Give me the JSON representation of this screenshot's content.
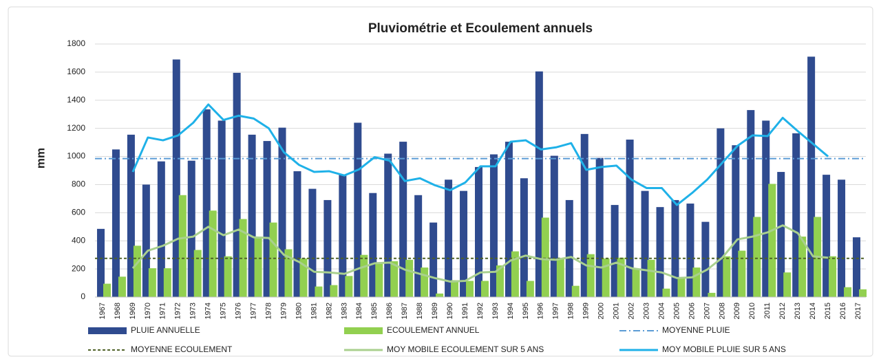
{
  "chart_data": {
    "type": "bar",
    "title": "Pluviométrie et Ecoulement annuels",
    "ylabel": "mm",
    "categories": [
      "1967",
      "1968",
      "1969",
      "1970",
      "1971",
      "1972",
      "1973",
      "1974",
      "1975",
      "1976",
      "1977",
      "1978",
      "1979",
      "1980",
      "1981",
      "1982",
      "1983",
      "1984",
      "1985",
      "1986",
      "1987",
      "1988",
      "1989",
      "1990",
      "1991",
      "1992",
      "1993",
      "1994",
      "1995",
      "1996",
      "1997",
      "1998",
      "1999",
      "2000",
      "2001",
      "2002",
      "2003",
      "2004",
      "2005",
      "2006",
      "2007",
      "2008",
      "2009",
      "2010",
      "2011",
      "2012",
      "2013",
      "2014",
      "2015",
      "2016",
      "2017"
    ],
    "ylim": [
      0,
      1800
    ],
    "yticks": [
      0,
      200,
      400,
      600,
      800,
      1000,
      1200,
      1400,
      1600,
      1800
    ],
    "grid": true,
    "series": [
      {
        "name": "PLUIE ANNUELLE",
        "type": "bar",
        "color": "#2f4b8f",
        "values": [
          485,
          1050,
          1155,
          800,
          965,
          1690,
          970,
          1335,
          1255,
          1595,
          1155,
          1110,
          1205,
          895,
          770,
          690,
          870,
          1240,
          740,
          1020,
          1105,
          725,
          530,
          835,
          755,
          925,
          1015,
          1105,
          845,
          1605,
          1005,
          690,
          1160,
          990,
          655,
          1120,
          755,
          640,
          690,
          665,
          535,
          1200,
          1080,
          1330,
          1255,
          890,
          1165,
          1710,
          870,
          835,
          425
        ]
      },
      {
        "name": "ECOULEMENT ANNUEL",
        "type": "bar",
        "color": "#92d050",
        "values": [
          95,
          145,
          365,
          205,
          205,
          725,
          335,
          615,
          290,
          555,
          430,
          530,
          340,
          275,
          75,
          85,
          150,
          300,
          240,
          255,
          265,
          210,
          25,
          120,
          115,
          115,
          225,
          325,
          115,
          565,
          275,
          80,
          305,
          275,
          280,
          200,
          265,
          60,
          135,
          210,
          30,
          290,
          330,
          570,
          805,
          175,
          430,
          570,
          290,
          70,
          55
        ]
      },
      {
        "name": "MOYENNE PLUIE",
        "type": "hline",
        "color": "#5b9bd5",
        "style": "dash-dot",
        "value": 985
      },
      {
        "name": "MOYENNE ECOULEMENT",
        "type": "hline",
        "color": "#4f6228",
        "style": "dash",
        "value": 275
      },
      {
        "name": "MOY MOBILE ECOULEMENT SUR 5 ANS",
        "type": "line",
        "color": "#a9d08e",
        "values": [
          null,
          null,
          205,
          330,
          365,
          415,
          430,
          500,
          440,
          480,
          425,
          420,
          300,
          250,
          180,
          175,
          165,
          205,
          240,
          245,
          195,
          165,
          135,
          110,
          115,
          175,
          180,
          260,
          295,
          270,
          265,
          285,
          225,
          210,
          245,
          205,
          190,
          175,
          135,
          140,
          195,
          280,
          410,
          430,
          460,
          510,
          455,
          290,
          280,
          null,
          null
        ]
      },
      {
        "name": "MOY MOBILE PLUIE SUR 5 ANS",
        "type": "line",
        "color": "#1fb1e8",
        "values": [
          null,
          null,
          890,
          1135,
          1115,
          1150,
          1240,
          1370,
          1260,
          1290,
          1270,
          1200,
          1030,
          940,
          890,
          895,
          865,
          910,
          995,
          970,
          825,
          845,
          795,
          760,
          815,
          930,
          930,
          1105,
          1115,
          1050,
          1065,
          1095,
          905,
          925,
          935,
          835,
          775,
          775,
          655,
          740,
          835,
          955,
          1075,
          1150,
          1145,
          1275,
          1180,
          1090,
          1000,
          null,
          null
        ]
      }
    ]
  }
}
